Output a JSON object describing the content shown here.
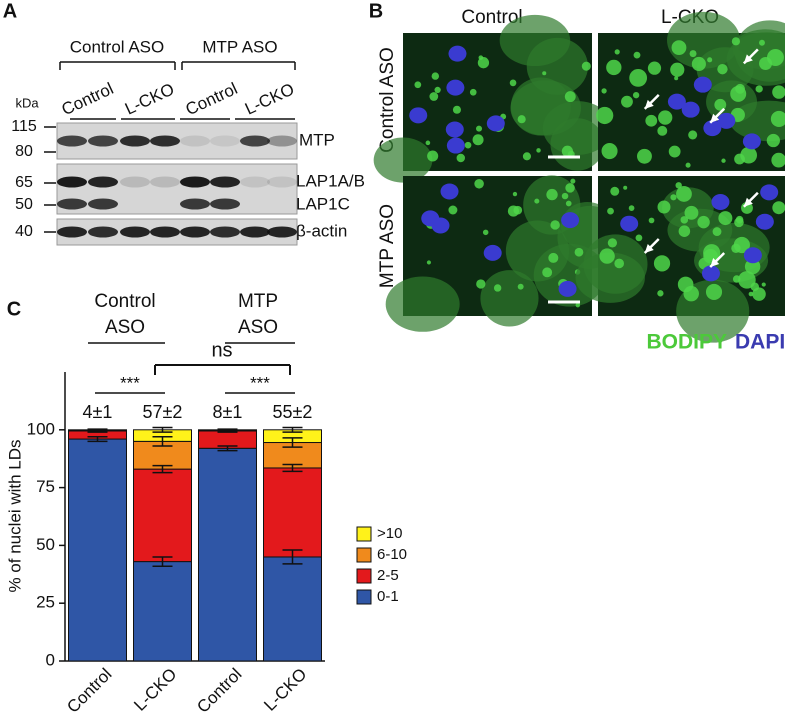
{
  "panel_a": {
    "label": "A",
    "groups": [
      "Control ASO",
      "MTP ASO"
    ],
    "lanes": [
      "Control",
      "L-CKO",
      "Control",
      "L-CKO"
    ],
    "unit": "kDa",
    "markers": [
      "115",
      "80",
      "65",
      "50",
      "40"
    ],
    "bands": [
      "MTP",
      "LAP1A/B",
      "LAP1C",
      "β-actin"
    ]
  },
  "panel_b": {
    "label": "B",
    "columns": [
      "Control",
      "L-CKO"
    ],
    "rows": [
      "Control ASO",
      "MTP ASO"
    ],
    "stains": [
      "BODIPY",
      "DAPI"
    ]
  },
  "chart_data": {
    "type": "bar",
    "stacked": true,
    "panel_label": "C",
    "y_label": "% of nuclei with LDs",
    "categories": [
      "Control",
      "L-CKO",
      "Control",
      "L-CKO"
    ],
    "groups": [
      [
        "Control",
        "ASO"
      ],
      [
        "MTP",
        "ASO"
      ]
    ],
    "annotations": [
      "4±1",
      "57±2",
      "8±1",
      "55±2"
    ],
    "significance": [
      "***",
      "***",
      "ns"
    ],
    "series": [
      {
        "name": "0-1",
        "color": "#2f56a6",
        "values": [
          96,
          43,
          92,
          45
        ],
        "errors": [
          1,
          2,
          1,
          3
        ]
      },
      {
        "name": "2-5",
        "color": "#e3191c",
        "values": [
          3.5,
          40,
          7.5,
          38.5
        ],
        "errors": [
          0.5,
          1.5,
          0.5,
          1.5
        ]
      },
      {
        "name": "6-10",
        "color": "#f08a1c",
        "values": [
          0.3,
          12,
          0.3,
          11
        ],
        "errors": [
          0.3,
          2,
          0.3,
          2
        ]
      },
      {
        "name": ">10",
        "color": "#fff21a",
        "values": [
          0.2,
          5,
          0.2,
          5.5
        ],
        "errors": [
          0.3,
          1,
          0.3,
          1
        ]
      }
    ],
    "ylim": [
      0,
      125
    ],
    "yticks": [
      0,
      25,
      50,
      75,
      100
    ],
    "legend": "right"
  }
}
